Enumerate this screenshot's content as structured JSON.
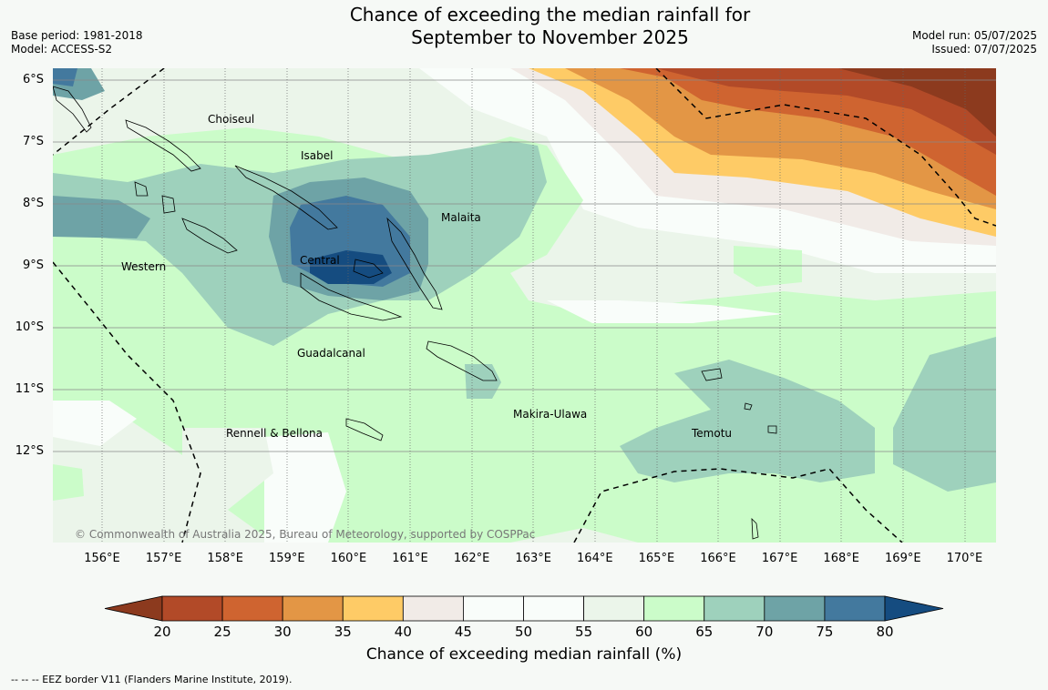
{
  "title_line1": "Chance of exceeding the median rainfall for",
  "title_line2": "September to November 2025",
  "base_period": "Base period: 1981-2018",
  "model": "Model: ACCESS-S2",
  "model_run": "Model run: 05/07/2025",
  "issued": "Issued: 07/07/2025",
  "copyright": "© Commonwealth of Australia 2025, Bureau of Meteorology, supported by COSPPac",
  "lat_labels": [
    "6°S",
    "7°S",
    "8°S",
    "9°S",
    "10°S",
    "11°S",
    "12°S"
  ],
  "lon_labels": [
    "156°E",
    "157°E",
    "158°E",
    "159°E",
    "160°E",
    "161°E",
    "162°E",
    "163°E",
    "164°E",
    "165°E",
    "166°E",
    "167°E",
    "168°E",
    "169°E",
    "170°E"
  ],
  "regions": [
    "Choiseul",
    "Isabel",
    "Malaita",
    "Central",
    "Western",
    "Guadalcanal",
    "Makira-Ulawa",
    "Temotu",
    "Rennell & Bellona"
  ],
  "colorbar": {
    "ticks": [
      "20",
      "25",
      "30",
      "35",
      "40",
      "45",
      "50",
      "55",
      "60",
      "65",
      "70",
      "75",
      "80"
    ],
    "title": "Chance of exceeding median rainfall (%)",
    "colors": [
      "#8c3a1e",
      "#b24a28",
      "#cf6430",
      "#e39645",
      "#fecb66",
      "#f1ebe7",
      "#f9fdfa",
      "#f9fdfa",
      "#ebf5ea",
      "#cbfcc9",
      "#9ed1bc",
      "#6ea3a6",
      "#43799e",
      "#154c80"
    ]
  },
  "footnote": "-- -- -- EEZ border V11 (Flanders Marine Institute, 2019)."
}
